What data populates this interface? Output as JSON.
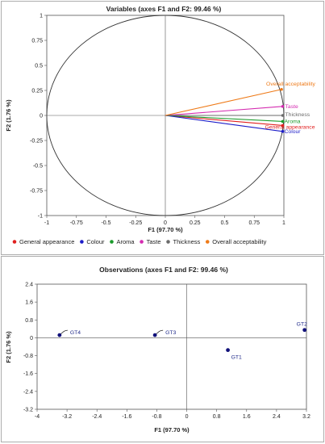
{
  "chart_data": [
    {
      "type": "scatter",
      "subtype": "correlation-circle",
      "title": "Variables (axes F1 and F2: 99.46 %)",
      "xlabel": "F1 (97.70 %)",
      "ylabel": "F2 (1.76 %)",
      "xlim": [
        -1,
        1
      ],
      "ylim": [
        -1,
        1
      ],
      "xticks": [
        "-1",
        "-0.75",
        "-0.5",
        "-0.25",
        "0",
        "0.25",
        "0.5",
        "0.75",
        "1"
      ],
      "yticks": [
        "1",
        "0.75",
        "0.5",
        "0.25",
        "0",
        "-0.25",
        "-0.5",
        "-0.75",
        "-1"
      ],
      "legend_position": "bottom",
      "series": [
        {
          "name": "General appearance",
          "color": "#e0201f",
          "x": 0.99,
          "y": -0.1
        },
        {
          "name": "Colour",
          "color": "#1c1cc8",
          "x": 0.99,
          "y": -0.16
        },
        {
          "name": "Aroma",
          "color": "#1a9a2a",
          "x": 0.99,
          "y": -0.06
        },
        {
          "name": "Taste",
          "color": "#d42bb0",
          "x": 0.99,
          "y": 0.09
        },
        {
          "name": "Thickness",
          "color": "#6b6b6b",
          "x": 0.99,
          "y": 0.0
        },
        {
          "name": "Overall acceptability",
          "color": "#ee7a18",
          "x": 0.98,
          "y": 0.26
        }
      ]
    },
    {
      "type": "scatter",
      "title": "Observations (axes F1 and F2: 99.46 %)",
      "xlabel": "F1 (97.70 %)",
      "ylabel": "F2 (1.76 %)",
      "xlim": [
        -4,
        3.2
      ],
      "ylim": [
        -3.2,
        2.4
      ],
      "xticks": [
        "-4",
        "-3.2",
        "-2.4",
        "-1.6",
        "-0.8",
        "0",
        "0.8",
        "1.6",
        "2.4",
        "3.2"
      ],
      "yticks": [
        "2.4",
        "1.6",
        "0.8",
        "0",
        "-0.8",
        "-1.6",
        "-2.4",
        "-3.2"
      ],
      "points": [
        {
          "label": "GT1",
          "x": 1.1,
          "y": -0.55
        },
        {
          "label": "GT2",
          "x": 3.15,
          "y": 0.35
        },
        {
          "label": "GT3",
          "x": -0.85,
          "y": 0.12
        },
        {
          "label": "GT4",
          "x": -3.4,
          "y": 0.12
        }
      ]
    }
  ]
}
